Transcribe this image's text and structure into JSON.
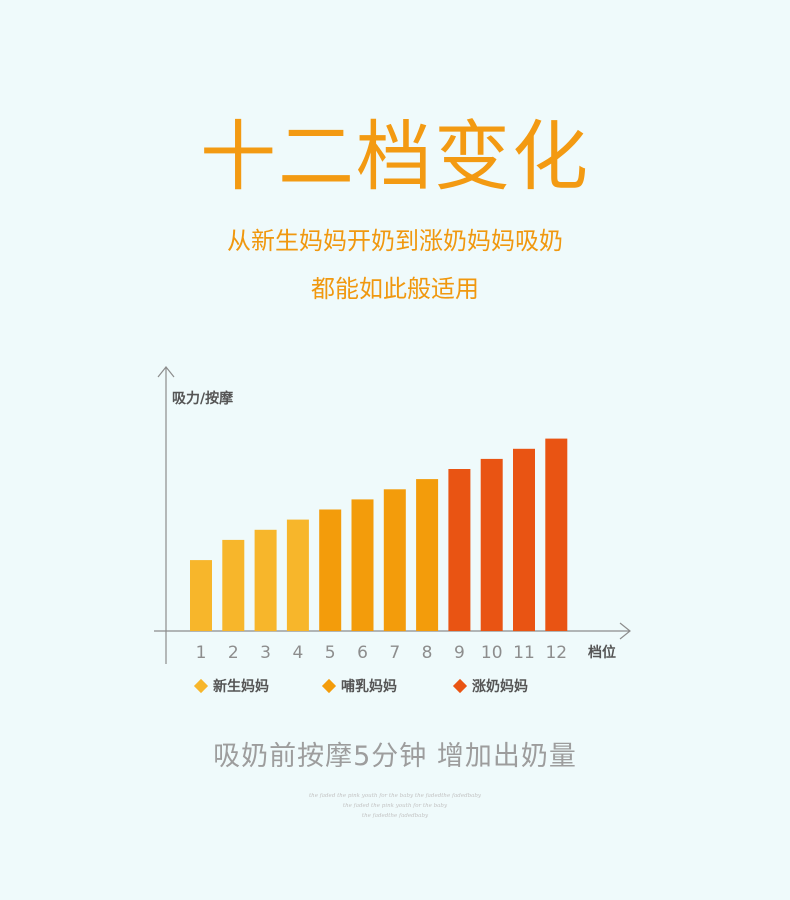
{
  "header": {
    "title": "十二档变化",
    "subtitle_line1": "从新生妈妈开奶到涨奶妈妈吸奶",
    "subtitle_line2": "都能如此般适用"
  },
  "chart_data": {
    "type": "bar",
    "ylabel": "吸力/按摩",
    "xlabel": "档位",
    "categories": [
      "1",
      "2",
      "3",
      "4",
      "5",
      "6",
      "7",
      "8",
      "9",
      "10",
      "11",
      "12"
    ],
    "values": [
      3.5,
      4.5,
      5.0,
      5.5,
      6.0,
      6.5,
      7.0,
      7.5,
      8.0,
      8.5,
      9.0,
      9.5
    ],
    "ylim": [
      0,
      12
    ],
    "grid": false,
    "legend_position": "bottom",
    "groups": [
      {
        "name": "新生妈妈",
        "color": "#f7b62b",
        "levels": [
          1,
          2,
          3,
          4
        ]
      },
      {
        "name": "哺乳妈妈",
        "color": "#f39c0b",
        "levels": [
          5,
          6,
          7,
          8
        ]
      },
      {
        "name": "涨奶妈妈",
        "color": "#e95413",
        "levels": [
          9,
          10,
          11,
          12
        ]
      }
    ]
  },
  "footer": {
    "tagline": "吸奶前按摩5分钟 增加出奶量",
    "fine_line1": "the faded the pink youth for the baby the fadedthe fadedbaby",
    "fine_line2": "the faded the pink youth for the baby",
    "fine_line3": "the fadedthe fadedbaby"
  },
  "colors": {
    "background": "#effafb",
    "accent": "#f39a12",
    "axis": "#8c8c8c"
  }
}
